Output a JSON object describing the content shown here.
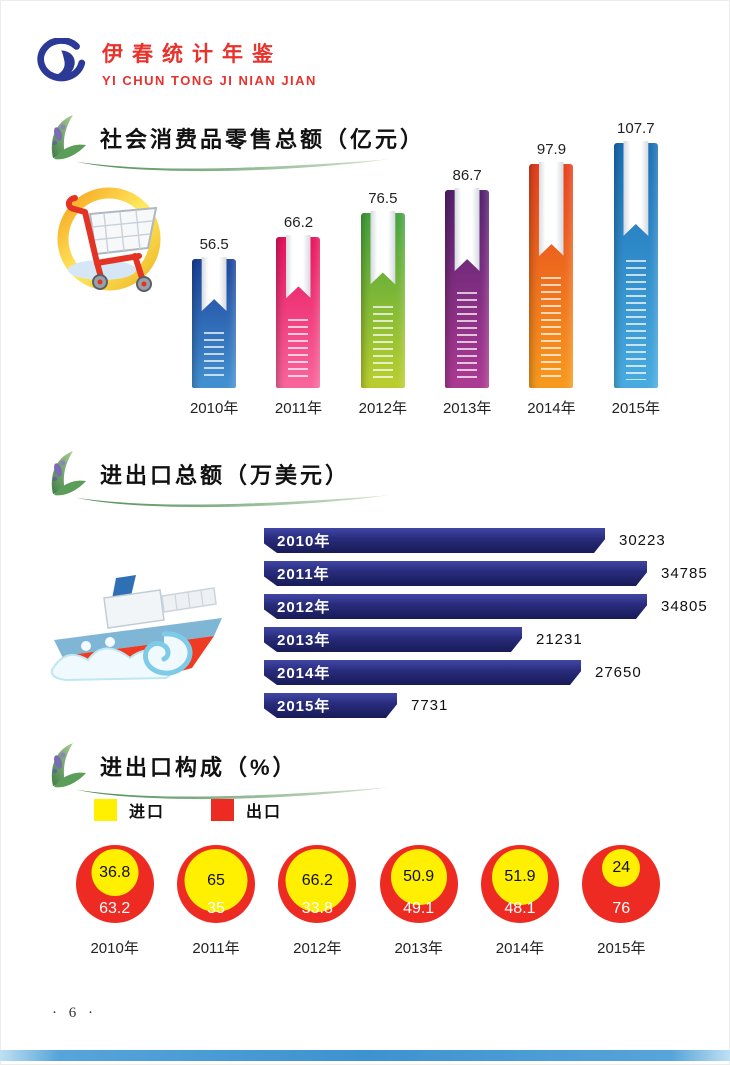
{
  "header": {
    "title": "伊春统计年鉴",
    "subtitle": "YI CHUN TONG JI NIAN JIAN",
    "brand_color": "#e8322c",
    "logo_color": "#2c3a97"
  },
  "chart_data": [
    {
      "type": "bar",
      "orientation": "vertical",
      "title": "社会消费品零售总额（亿元）",
      "categories": [
        "2010年",
        "2011年",
        "2012年",
        "2013年",
        "2014年",
        "2015年"
      ],
      "values": [
        56.5,
        66.2,
        76.5,
        86.7,
        97.9,
        107.7
      ],
      "ylim": [
        0,
        110
      ],
      "grid": false,
      "value_labels": "above bars",
      "bar_gradients": [
        [
          "#1c449b",
          "#4492d2"
        ],
        [
          "#e8145e",
          "#f9679c"
        ],
        [
          "#44a33f",
          "#bccf2e"
        ],
        [
          "#53216e",
          "#ad3a93"
        ],
        [
          "#e6401f",
          "#f79b1d"
        ],
        [
          "#1b6fb6",
          "#49ace0"
        ]
      ]
    },
    {
      "type": "bar",
      "orientation": "horizontal",
      "title": "进出口总额（万美元）",
      "categories": [
        "2010年",
        "2011年",
        "2012年",
        "2013年",
        "2014年",
        "2015年"
      ],
      "values": [
        30223,
        34785,
        34805,
        21231,
        27650,
        7731
      ],
      "xlim": [
        0,
        35000
      ],
      "grid": false,
      "bar_color": "#292c7c",
      "value_labels": "right of bars"
    },
    {
      "type": "pie",
      "variant": "nested-circles",
      "title": "进出口构成（%）",
      "categories": [
        "2010年",
        "2011年",
        "2012年",
        "2013年",
        "2014年",
        "2015年"
      ],
      "legend": [
        {
          "label": "进口",
          "color": "#ffef00"
        },
        {
          "label": "出口",
          "color": "#ee2b22"
        }
      ],
      "legend_position": "top-left",
      "series": [
        {
          "name": "进口",
          "values": [
            36.8,
            65,
            66.2,
            50.9,
            51.9,
            24
          ]
        },
        {
          "name": "出口",
          "values": [
            63.2,
            35,
            33.8,
            49.1,
            48.1,
            76
          ]
        }
      ]
    }
  ],
  "footer": {
    "page_number": "· 6 ·"
  }
}
